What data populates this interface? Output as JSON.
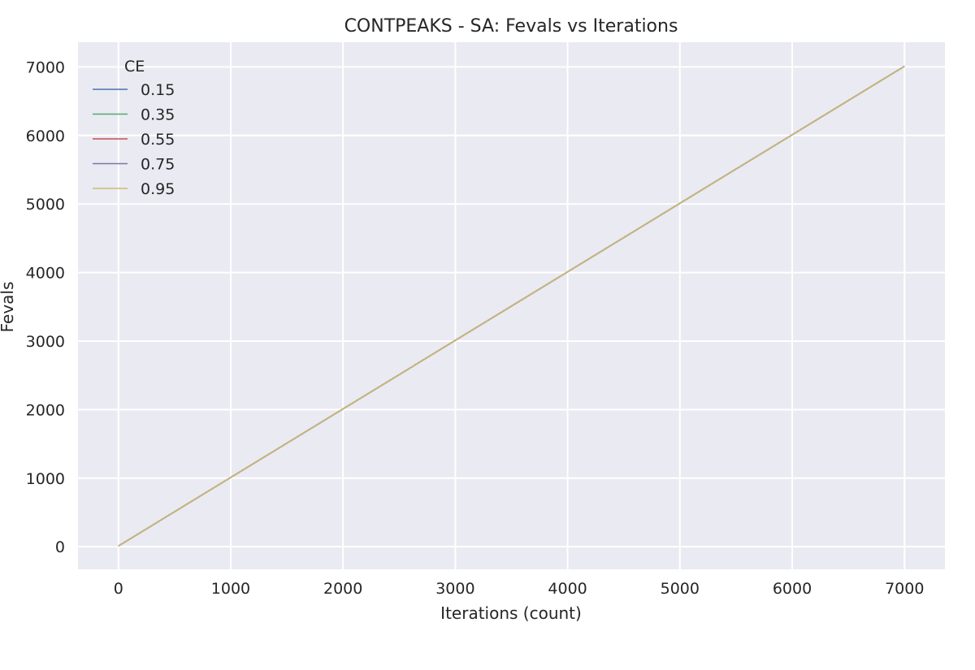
{
  "chart_data": {
    "type": "line",
    "title": "CONTPEAKS - SA: Fevals vs Iterations",
    "xlabel": "Iterations (count)",
    "ylabel": "Fevals",
    "xlim": [
      -360,
      7360
    ],
    "ylim": [
      -330,
      7360
    ],
    "xticks": [
      0,
      1000,
      2000,
      3000,
      4000,
      5000,
      6000,
      7000
    ],
    "yticks": [
      0,
      1000,
      2000,
      3000,
      4000,
      5000,
      6000,
      7000
    ],
    "grid": true,
    "legend": {
      "title": "CE",
      "placement": "top-left"
    },
    "series": [
      {
        "name": "0.15",
        "color": "#4c72b0",
        "x": [
          0,
          7000
        ],
        "y": [
          10,
          7010
        ]
      },
      {
        "name": "0.35",
        "color": "#55a868",
        "x": [
          0,
          7000
        ],
        "y": [
          10,
          7010
        ]
      },
      {
        "name": "0.55",
        "color": "#c44e52",
        "x": [
          0,
          7000
        ],
        "y": [
          10,
          7010
        ]
      },
      {
        "name": "0.75",
        "color": "#8172b2",
        "x": [
          0,
          7000
        ],
        "y": [
          10,
          7010
        ]
      },
      {
        "name": "0.95",
        "color": "#ccb974",
        "x": [
          0,
          7000
        ],
        "y": [
          10,
          7010
        ]
      }
    ]
  }
}
